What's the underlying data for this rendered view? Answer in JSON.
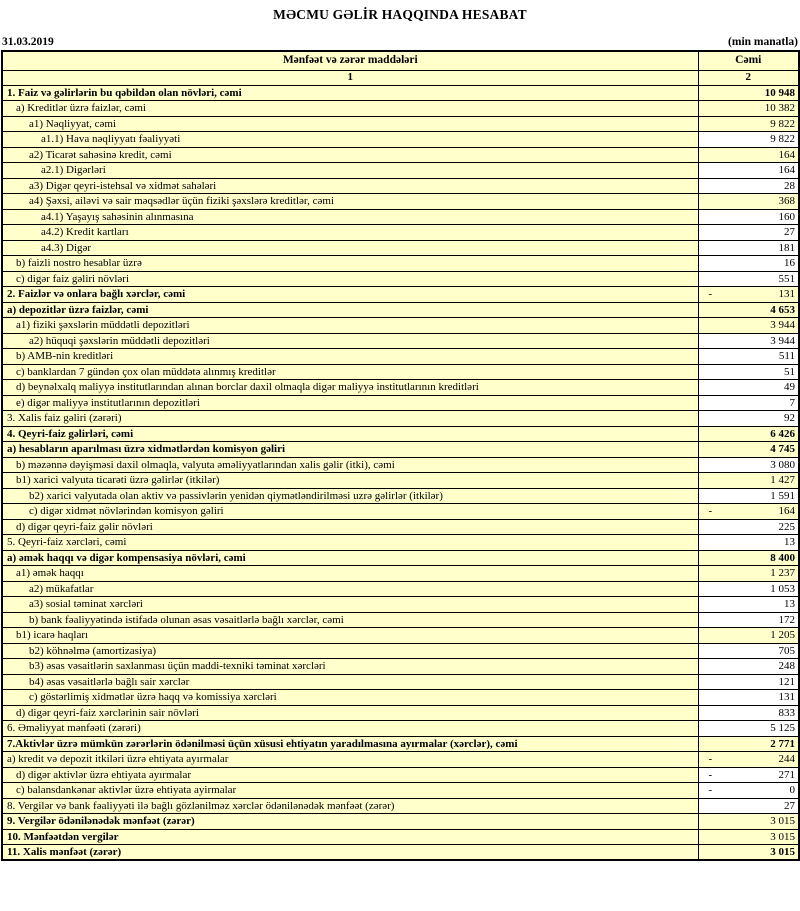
{
  "header": {
    "title": "MƏCMU GƏLİR HAQQINDA HESABAT",
    "date": "31.03.2019",
    "unit_note": "(min manatla)"
  },
  "table": {
    "col_label_header": "Mənfəət və zərər maddələri",
    "col_value_header": "Cəmi",
    "col_label_num": "1",
    "col_value_num": "2",
    "colors": {
      "cell_yellow": "#FFFFCC",
      "cell_white": "#FFFFFF",
      "border": "#000000"
    },
    "rows": [
      {
        "label": "1. Faiz və gəlirlərin bu qəbildən olan növləri, cəmi",
        "value": "10 948",
        "indent": 0,
        "bold_label": true,
        "bold_value": true,
        "value_bg": "yellow",
        "negative": false
      },
      {
        "label": "a) Kreditlər üzrə faizlər, cəmi",
        "value": "10 382",
        "indent": 1,
        "bold_label": false,
        "bold_value": false,
        "value_bg": "yellow",
        "negative": false
      },
      {
        "label": "a1) Nəqliyyat, cəmi",
        "value": "9 822",
        "indent": 2,
        "bold_label": false,
        "bold_value": false,
        "value_bg": "yellow",
        "negative": false
      },
      {
        "label": "a1.1) Hava nəqliyyatı fəaliyyəti",
        "value": "9 822",
        "indent": 3,
        "bold_label": false,
        "bold_value": false,
        "value_bg": "white",
        "negative": false
      },
      {
        "label": "a2) Ticarət sahəsinə kredit, cəmi",
        "value": "164",
        "indent": 2,
        "bold_label": false,
        "bold_value": false,
        "value_bg": "yellow",
        "negative": false
      },
      {
        "label": "a2.1) Digərləri",
        "value": "164",
        "indent": 3,
        "bold_label": false,
        "bold_value": false,
        "value_bg": "white",
        "negative": false
      },
      {
        "label": "a3) Digər qeyri-istehsal və xidmət sahələri",
        "value": "28",
        "indent": 2,
        "bold_label": false,
        "bold_value": false,
        "value_bg": "white",
        "negative": false
      },
      {
        "label": "a4) Şəxsi, ailəvi və sair məqsədlər üçün fiziki şəxslərə kreditlər, cəmi",
        "value": "368",
        "indent": 2,
        "bold_label": false,
        "bold_value": false,
        "value_bg": "yellow",
        "negative": false
      },
      {
        "label": "a4.1) Yaşayış sahəsinin alınmasına",
        "value": "160",
        "indent": 3,
        "bold_label": false,
        "bold_value": false,
        "value_bg": "white",
        "negative": false
      },
      {
        "label": "a4.2) Kredit kartları",
        "value": "27",
        "indent": 3,
        "bold_label": false,
        "bold_value": false,
        "value_bg": "white",
        "negative": false
      },
      {
        "label": "a4.3) Digər",
        "value": "181",
        "indent": 3,
        "bold_label": false,
        "bold_value": false,
        "value_bg": "white",
        "negative": false
      },
      {
        "label": "b) faizli nostro hesablar üzrə",
        "value": "16",
        "indent": 1,
        "bold_label": false,
        "bold_value": false,
        "value_bg": "white",
        "negative": false
      },
      {
        "label": "c) digər faiz gəliri növləri",
        "value": "551",
        "indent": 1,
        "bold_label": false,
        "bold_value": false,
        "value_bg": "white",
        "negative": false
      },
      {
        "label": "2. Faizlər və onlara bağlı xərclər, cəmi",
        "value": "131",
        "indent": 0,
        "bold_label": true,
        "bold_value": false,
        "value_bg": "yellow",
        "negative": true
      },
      {
        "label": "a) depozitlər üzrə faizlər, cəmi",
        "value": "4 653",
        "indent": 0,
        "bold_label": true,
        "bold_value": true,
        "value_bg": "yellow",
        "negative": false
      },
      {
        "label": "a1) fiziki şəxslərin müddətli depozitləri",
        "value": "3 944",
        "indent": 1,
        "bold_label": false,
        "bold_value": false,
        "value_bg": "yellow",
        "negative": false
      },
      {
        "label": "a2) hüquqi şəxslərin müddətli depozitləri",
        "value": "3 944",
        "indent": 2,
        "bold_label": false,
        "bold_value": false,
        "value_bg": "white",
        "negative": false
      },
      {
        "label": "b) AMB-nin kreditləri",
        "value": "511",
        "indent": 1,
        "bold_label": false,
        "bold_value": false,
        "value_bg": "white",
        "negative": false
      },
      {
        "label": "c) banklardan 7 gündən çox olan müddətə alınmış kreditlər",
        "value": "51",
        "indent": 1,
        "bold_label": false,
        "bold_value": false,
        "value_bg": "white",
        "negative": false
      },
      {
        "label": "d) beynəlxalq maliyyə institutlarından alınan borclar daxil olmaqla digər maliyyə institutlarının kreditləri",
        "value": "49",
        "indent": 1,
        "bold_label": false,
        "bold_value": false,
        "value_bg": "white",
        "negative": false
      },
      {
        "label": "e) digər maliyyə institutlarının depozitləri",
        "value": "7",
        "indent": 1,
        "bold_label": false,
        "bold_value": false,
        "value_bg": "white",
        "negative": false
      },
      {
        "label": "3. Xalis faiz gəliri (zərəri)",
        "value": "92",
        "indent": 0,
        "bold_label": false,
        "bold_value": false,
        "value_bg": "white",
        "negative": false
      },
      {
        "label": "4. Qeyri-faiz gəlirləri, cəmi",
        "value": "6 426",
        "indent": 0,
        "bold_label": true,
        "bold_value": true,
        "value_bg": "yellow",
        "negative": false
      },
      {
        "label": "a) hesabların aparılması üzrə xidmətlərdən komisyon gəliri",
        "value": "4 745",
        "indent": 0,
        "bold_label": true,
        "bold_value": true,
        "value_bg": "yellow",
        "negative": false
      },
      {
        "label": "b) məzənnə dəyişməsi daxil olmaqla, valyuta əməliyyatlarından xalis gəlir (itki), cəmi",
        "value": "3 080",
        "indent": 1,
        "bold_label": false,
        "bold_value": false,
        "value_bg": "white",
        "negative": false
      },
      {
        "label": "b1) xarici valyuta ticarəti üzrə gəlirlər (itkilər)",
        "value": "1 427",
        "indent": 1,
        "bold_label": false,
        "bold_value": false,
        "value_bg": "yellow",
        "negative": false
      },
      {
        "label": "b2) xarici valyutada olan aktiv və passivlərin yenidən qiymətləndirilməsi uzrə gəlirlər (itkilər)",
        "value": "1 591",
        "indent": 2,
        "bold_label": false,
        "bold_value": false,
        "value_bg": "white",
        "negative": false
      },
      {
        "label": "c) digər xidmət növlərindən komisyon gəliri",
        "value": "164",
        "indent": 2,
        "bold_label": false,
        "bold_value": false,
        "value_bg": "yellow",
        "negative": true
      },
      {
        "label": "d) digər qeyri-faiz gəlir növləri",
        "value": "225",
        "indent": 1,
        "bold_label": false,
        "bold_value": false,
        "value_bg": "white",
        "negative": false
      },
      {
        "label": "5. Qeyri-faiz xərcləri, cəmi",
        "value": "13",
        "indent": 0,
        "bold_label": false,
        "bold_value": false,
        "value_bg": "white",
        "negative": false
      },
      {
        "label": "a) əmək haqqı və digər kompensasiya növləri, cəmi",
        "value": "8 400",
        "indent": 0,
        "bold_label": true,
        "bold_value": true,
        "value_bg": "yellow",
        "negative": false
      },
      {
        "label": "a1) əmək haqqı",
        "value": "1 237",
        "indent": 1,
        "bold_label": false,
        "bold_value": false,
        "value_bg": "yellow",
        "negative": false
      },
      {
        "label": "a2) mükafatlar",
        "value": "1 053",
        "indent": 2,
        "bold_label": false,
        "bold_value": false,
        "value_bg": "white",
        "negative": false
      },
      {
        "label": "a3) sosial təminat xərcləri",
        "value": "13",
        "indent": 2,
        "bold_label": false,
        "bold_value": false,
        "value_bg": "white",
        "negative": false
      },
      {
        "label": "b) bank fəaliyyətində istifadə olunan əsas vəsaitlərlə bağlı xərclər, cəmi",
        "value": "172",
        "indent": 2,
        "bold_label": false,
        "bold_value": false,
        "value_bg": "white",
        "negative": false
      },
      {
        "label": "b1) icarə haqları",
        "value": "1 205",
        "indent": 1,
        "bold_label": false,
        "bold_value": false,
        "value_bg": "yellow",
        "negative": false
      },
      {
        "label": "b2) köhnəlmə (amortizasiya)",
        "value": "705",
        "indent": 2,
        "bold_label": false,
        "bold_value": false,
        "value_bg": "white",
        "negative": false
      },
      {
        "label": "b3) əsas vəsaitlərin saxlanması üçün maddi-texniki təminat xərcləri",
        "value": "248",
        "indent": 2,
        "bold_label": false,
        "bold_value": false,
        "value_bg": "white",
        "negative": false
      },
      {
        "label": "b4) əsas vəsaitlərlə bağlı sair xərclər",
        "value": "121",
        "indent": 2,
        "bold_label": false,
        "bold_value": false,
        "value_bg": "white",
        "negative": false
      },
      {
        "label": "c) göstərlimiş xidmətlər üzrə haqq və komissiya xərcləri",
        "value": "131",
        "indent": 2,
        "bold_label": false,
        "bold_value": false,
        "value_bg": "white",
        "negative": false
      },
      {
        "label": "d) digər qeyri-faiz xərclərinin sair növləri",
        "value": "833",
        "indent": 1,
        "bold_label": false,
        "bold_value": false,
        "value_bg": "white",
        "negative": false
      },
      {
        "label": "6. Əməliyyat mənfəəti (zərəri)",
        "value": "5 125",
        "indent": 0,
        "bold_label": false,
        "bold_value": false,
        "value_bg": "white",
        "negative": false
      },
      {
        "label": "7.Aktivlər üzrə mümkün zərərlərin ödənilməsi üçün xüsusi ehtiyatın yaradılmasına ayırmalar (xərclər), cəmi",
        "value": "2 771",
        "indent": 0,
        "bold_label": true,
        "bold_value": true,
        "value_bg": "yellow",
        "negative": false
      },
      {
        "label": "a) kredit və depozit itkiləri üzrə ehtiyata ayırmalar",
        "value": "244",
        "indent": 0,
        "bold_label": false,
        "bold_value": false,
        "value_bg": "yellow",
        "negative": true
      },
      {
        "label": "d) digər aktivlər üzrə ehtiyata ayırmalar",
        "value": "271",
        "indent": 1,
        "bold_label": false,
        "bold_value": false,
        "value_bg": "white",
        "negative": true
      },
      {
        "label": "c) balansdankənar aktivlər üzrə ehtiyata ayirmalar",
        "value": "0",
        "indent": 1,
        "bold_label": false,
        "bold_value": false,
        "value_bg": "white",
        "negative": true
      },
      {
        "label": "8. Vergilər və bank fəaliyyəti ilə bağlı gözlənilməz xərclər ödənilənədək mənfəət (zərər)",
        "value": "27",
        "indent": 0,
        "bold_label": false,
        "bold_value": false,
        "value_bg": "white",
        "negative": false
      },
      {
        "label": "9. Vergilər ödənilənədək mənfəət (zərər)",
        "value": "3 015",
        "indent": 0,
        "bold_label": true,
        "bold_value": false,
        "value_bg": "yellow",
        "negative": false
      },
      {
        "label": "10. Mənfəətdən vergilər",
        "value": "3 015",
        "indent": 0,
        "bold_label": true,
        "bold_value": false,
        "value_bg": "yellow",
        "negative": false
      },
      {
        "label": "11. Xalis mənfəət (zərər)",
        "value": "3 015",
        "indent": 0,
        "bold_label": true,
        "bold_value": true,
        "value_bg": "yellow",
        "negative": false
      }
    ]
  }
}
